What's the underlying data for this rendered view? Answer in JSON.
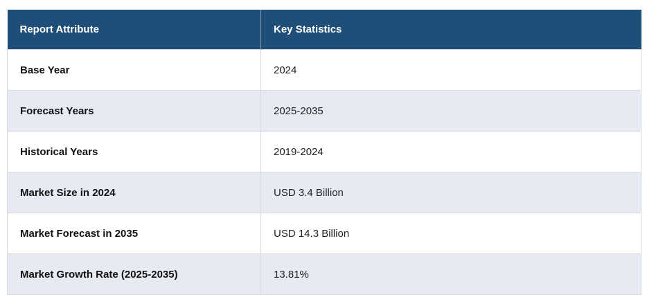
{
  "table": {
    "columns": [
      {
        "label": "Report Attribute"
      },
      {
        "label": "Key Statistics"
      }
    ],
    "rows": [
      {
        "attribute": "Base Year",
        "value": "2024"
      },
      {
        "attribute": "Forecast Years",
        "value": "2025-2035"
      },
      {
        "attribute": "Historical Years",
        "value": "2019-2024"
      },
      {
        "attribute": "Market Size in 2024",
        "value": "USD 3.4 Billion"
      },
      {
        "attribute": "Market Forecast in 2035",
        "value": "USD 14.3 Billion"
      },
      {
        "attribute": "Market Growth Rate (2025-2035)",
        "value": "13.81%"
      }
    ]
  },
  "colors": {
    "header_bg": "#1F4E79",
    "header_text": "#FFFFFF",
    "row_bg": "#FFFFFF",
    "row_alt_bg": "#E7E9F3",
    "border": "#D9D9DE",
    "label_text": "#111111",
    "value_text": "#222222"
  }
}
